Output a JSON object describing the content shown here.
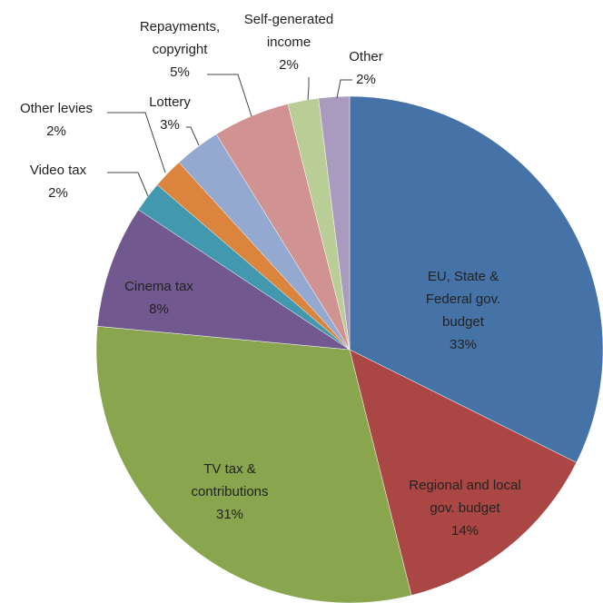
{
  "chart_data": {
    "type": "pie",
    "categories": [
      "EU, State &\nFederal gov.\nbudget",
      "Regional and local\ngov. budget",
      "TV tax &\ncontributions",
      "Cinema tax",
      "Video tax",
      "Other levies",
      "Lottery",
      "Repayments,\ncopyright",
      "Self-generated\nincome",
      "Other"
    ],
    "values": [
      33,
      14,
      31,
      8,
      2,
      2,
      3,
      5,
      2,
      2
    ],
    "value_labels": [
      "33%",
      "14%",
      "31%",
      "8%",
      "2%",
      "2%",
      "3%",
      "5%",
      "2%",
      "2%"
    ],
    "colors": [
      "#4572a7",
      "#aa4643",
      "#89a54e",
      "#71588f",
      "#4198af",
      "#db843d",
      "#93a9cf",
      "#d19392",
      "#b9cd96",
      "#a99bbd"
    ]
  }
}
